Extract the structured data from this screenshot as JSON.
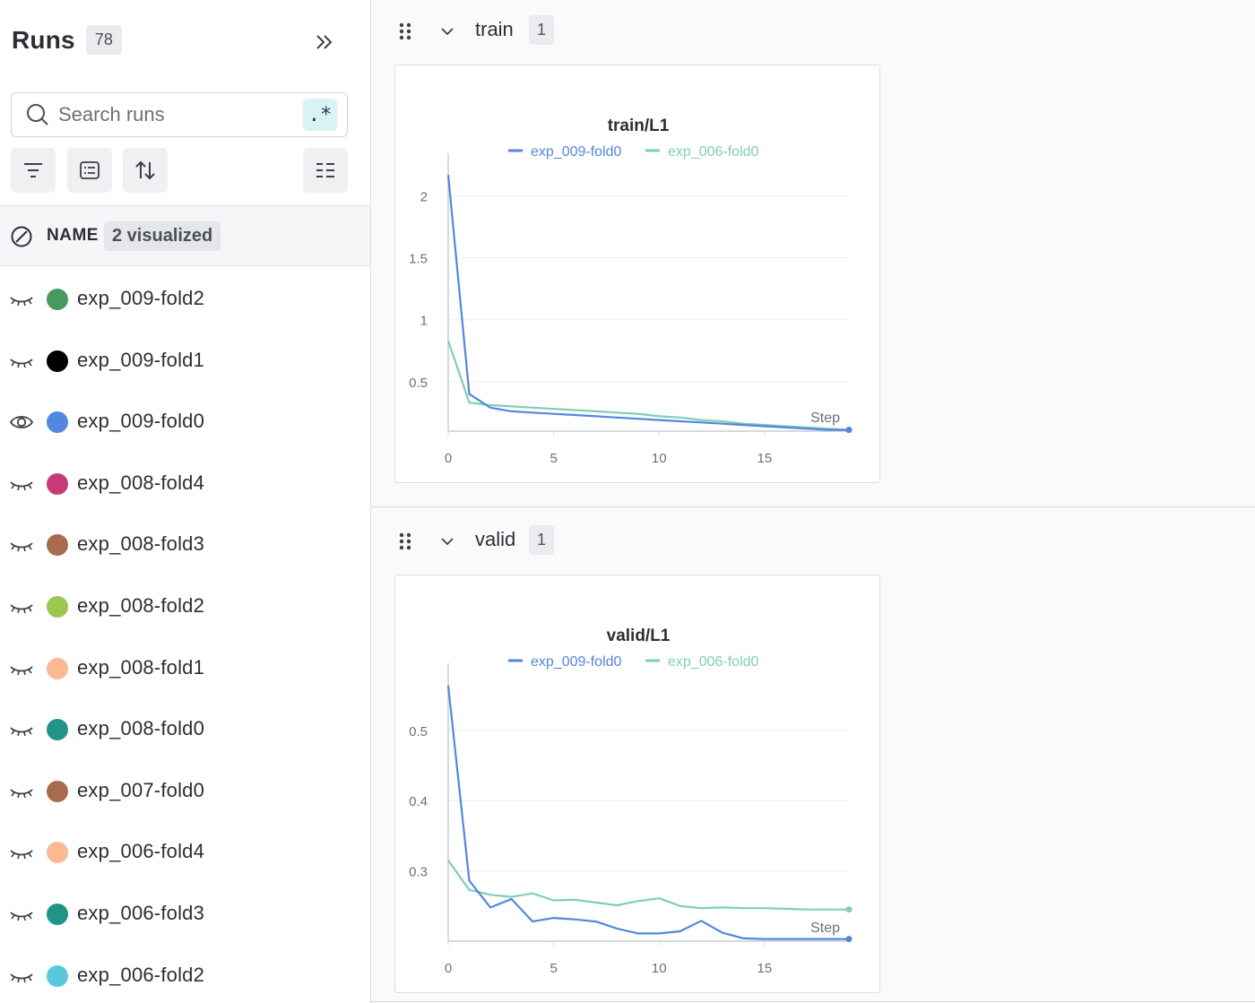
{
  "sidebar": {
    "title": "Runs",
    "count": "78",
    "search": {
      "placeholder": "Search runs",
      "value": "",
      "regex_label": ".*"
    },
    "toolbar": [
      "filter-icon",
      "group-icon",
      "sort-icon",
      "columns-icon"
    ],
    "column_header": {
      "name_label": "NAME",
      "visualized_badge": "2 visualized"
    },
    "runs": [
      {
        "name": "exp_009-fold2",
        "color": "#479a5f",
        "visible": false
      },
      {
        "name": "exp_009-fold1",
        "color": "#000000",
        "visible": false
      },
      {
        "name": "exp_009-fold0",
        "color": "#5387dd",
        "visible": true
      },
      {
        "name": "exp_008-fold4",
        "color": "#c73a7a",
        "visible": false
      },
      {
        "name": "exp_008-fold3",
        "color": "#a96b4e",
        "visible": false
      },
      {
        "name": "exp_008-fold2",
        "color": "#9bc850",
        "visible": false
      },
      {
        "name": "exp_008-fold1",
        "color": "#fbb993",
        "visible": false
      },
      {
        "name": "exp_008-fold0",
        "color": "#229487",
        "visible": false
      },
      {
        "name": "exp_007-fold0",
        "color": "#a96b4e",
        "visible": false
      },
      {
        "name": "exp_006-fold4",
        "color": "#fbb993",
        "visible": false
      },
      {
        "name": "exp_006-fold3",
        "color": "#229487",
        "visible": false
      },
      {
        "name": "exp_006-fold2",
        "color": "#58c9dc",
        "visible": false
      }
    ]
  },
  "sections": [
    {
      "title": "train",
      "count": "1"
    },
    {
      "title": "valid",
      "count": "1"
    }
  ],
  "chart_data": [
    {
      "type": "line",
      "title": "train/L1",
      "xlabel": "Step",
      "ylabel": "",
      "xlim": [
        0,
        19
      ],
      "ylim": [
        0.1,
        2.2
      ],
      "xticks": [
        "0",
        "5",
        "10",
        "15"
      ],
      "yticks": [
        "0.5",
        "1",
        "1.5",
        "2"
      ],
      "legend_position": "top-center",
      "x": [
        0,
        1,
        2,
        3,
        4,
        5,
        6,
        7,
        8,
        9,
        10,
        11,
        12,
        13,
        14,
        15,
        16,
        17,
        18,
        19
      ],
      "series": [
        {
          "name": "exp_009-fold0",
          "color": "#5387dd",
          "values": [
            2.17,
            0.4,
            0.29,
            0.26,
            0.25,
            0.24,
            0.23,
            0.22,
            0.21,
            0.2,
            0.19,
            0.18,
            0.17,
            0.16,
            0.15,
            0.14,
            0.13,
            0.12,
            0.11,
            0.11
          ]
        },
        {
          "name": "exp_006-fold0",
          "color": "#7ecfb5",
          "values": [
            0.83,
            0.33,
            0.31,
            0.3,
            0.29,
            0.28,
            0.27,
            0.26,
            0.25,
            0.24,
            0.22,
            0.21,
            0.19,
            0.18,
            0.16,
            0.15,
            0.14,
            0.13,
            0.12,
            0.11
          ]
        }
      ]
    },
    {
      "type": "line",
      "title": "valid/L1",
      "xlabel": "Step",
      "ylabel": "",
      "xlim": [
        0,
        19
      ],
      "ylim": [
        0.2,
        0.57
      ],
      "xticks": [
        "0",
        "5",
        "10",
        "15"
      ],
      "yticks": [
        "0.3",
        "0.4",
        "0.5"
      ],
      "legend_position": "top-center",
      "x": [
        0,
        1,
        2,
        3,
        4,
        5,
        6,
        7,
        8,
        9,
        10,
        11,
        12,
        13,
        14,
        15,
        16,
        17,
        18,
        19
      ],
      "series": [
        {
          "name": "exp_009-fold0",
          "color": "#5387dd",
          "values": [
            0.564,
            0.286,
            0.248,
            0.26,
            0.228,
            0.233,
            0.231,
            0.228,
            0.218,
            0.211,
            0.211,
            0.214,
            0.229,
            0.212,
            0.204,
            0.203,
            0.203,
            0.203,
            0.203,
            0.203
          ]
        },
        {
          "name": "exp_006-fold0",
          "color": "#7ecfb5",
          "values": [
            0.315,
            0.273,
            0.266,
            0.263,
            0.268,
            0.258,
            0.259,
            0.255,
            0.251,
            0.257,
            0.261,
            0.25,
            0.247,
            0.248,
            0.247,
            0.247,
            0.246,
            0.245,
            0.245,
            0.245
          ]
        }
      ]
    }
  ]
}
